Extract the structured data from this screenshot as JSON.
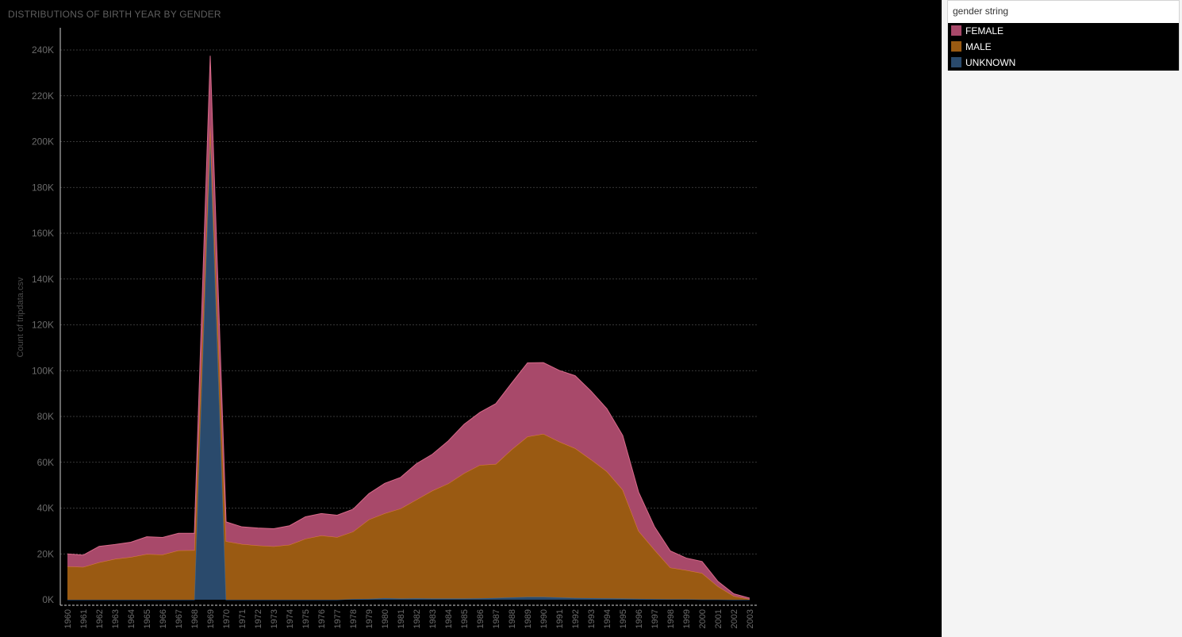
{
  "title": "DISTRIBUTIONS OF BIRTH YEAR BY GENDER",
  "legend": {
    "title": "gender string",
    "items": [
      {
        "label": "FEMALE",
        "color": "#a8496a"
      },
      {
        "label": "MALE",
        "color": "#9a5a12"
      },
      {
        "label": "UNKNOWN",
        "color": "#2a4a6c"
      }
    ]
  },
  "chart_data": {
    "type": "area",
    "stacked": true,
    "title": "DISTRIBUTIONS OF BIRTH YEAR BY GENDER",
    "xlabel": "",
    "ylabel": "Count of tripdata.csv",
    "ylim": [
      0,
      240000
    ],
    "yticks": [
      "0K",
      "20K",
      "40K",
      "60K",
      "80K",
      "100K",
      "120K",
      "140K",
      "160K",
      "180K",
      "200K",
      "220K",
      "240K"
    ],
    "grid": true,
    "legend_position": "right",
    "categories": [
      "1960",
      "1961",
      "1962",
      "1963",
      "1964",
      "1965",
      "1966",
      "1967",
      "1968",
      "1969",
      "1970",
      "1971",
      "1972",
      "1973",
      "1974",
      "1975",
      "1976",
      "1977",
      "1978",
      "1979",
      "1980",
      "1981",
      "1982",
      "1983",
      "1984",
      "1985",
      "1986",
      "1987",
      "1988",
      "1989",
      "1990",
      "1991",
      "1992",
      "1993",
      "1994",
      "1995",
      "1996",
      "1997",
      "1998",
      "1999",
      "2000",
      "2001",
      "2002",
      "2003"
    ],
    "series": [
      {
        "name": "UNKNOWN",
        "color": "#2a4a6c",
        "values": [
          0,
          0,
          0,
          0,
          0,
          0,
          0,
          0,
          0,
          200000,
          0,
          0,
          0,
          0,
          0,
          0,
          0,
          0,
          300,
          400,
          700,
          500,
          600,
          500,
          500,
          500,
          600,
          800,
          1000,
          1200,
          1200,
          1000,
          800,
          700,
          600,
          500,
          400,
          300,
          200,
          200,
          100,
          100,
          0,
          0
        ]
      },
      {
        "name": "MALE",
        "color": "#9a5a12",
        "values": [
          14500,
          14300,
          16300,
          17800,
          18600,
          19900,
          19700,
          21500,
          21600,
          7500,
          25500,
          24300,
          23700,
          23300,
          24000,
          26600,
          28000,
          27300,
          29400,
          34600,
          37000,
          39300,
          43100,
          47100,
          50200,
          54700,
          58200,
          58400,
          64600,
          70000,
          71200,
          68000,
          65300,
          60500,
          55400,
          47500,
          29600,
          21500,
          13800,
          12700,
          11500,
          5700,
          1600,
          200
        ]
      },
      {
        "name": "FEMALE",
        "color": "#a8496a",
        "values": [
          5500,
          5200,
          7000,
          6300,
          6500,
          7600,
          7500,
          7500,
          7400,
          30000,
          8500,
          7500,
          7600,
          7700,
          8300,
          9600,
          9600,
          9600,
          9800,
          11300,
          13100,
          13600,
          15700,
          15900,
          18600,
          21400,
          23000,
          26400,
          29000,
          32200,
          31100,
          31100,
          31700,
          29900,
          27400,
          23700,
          17000,
          10100,
          7300,
          5300,
          5100,
          2200,
          1000,
          500
        ]
      }
    ]
  }
}
